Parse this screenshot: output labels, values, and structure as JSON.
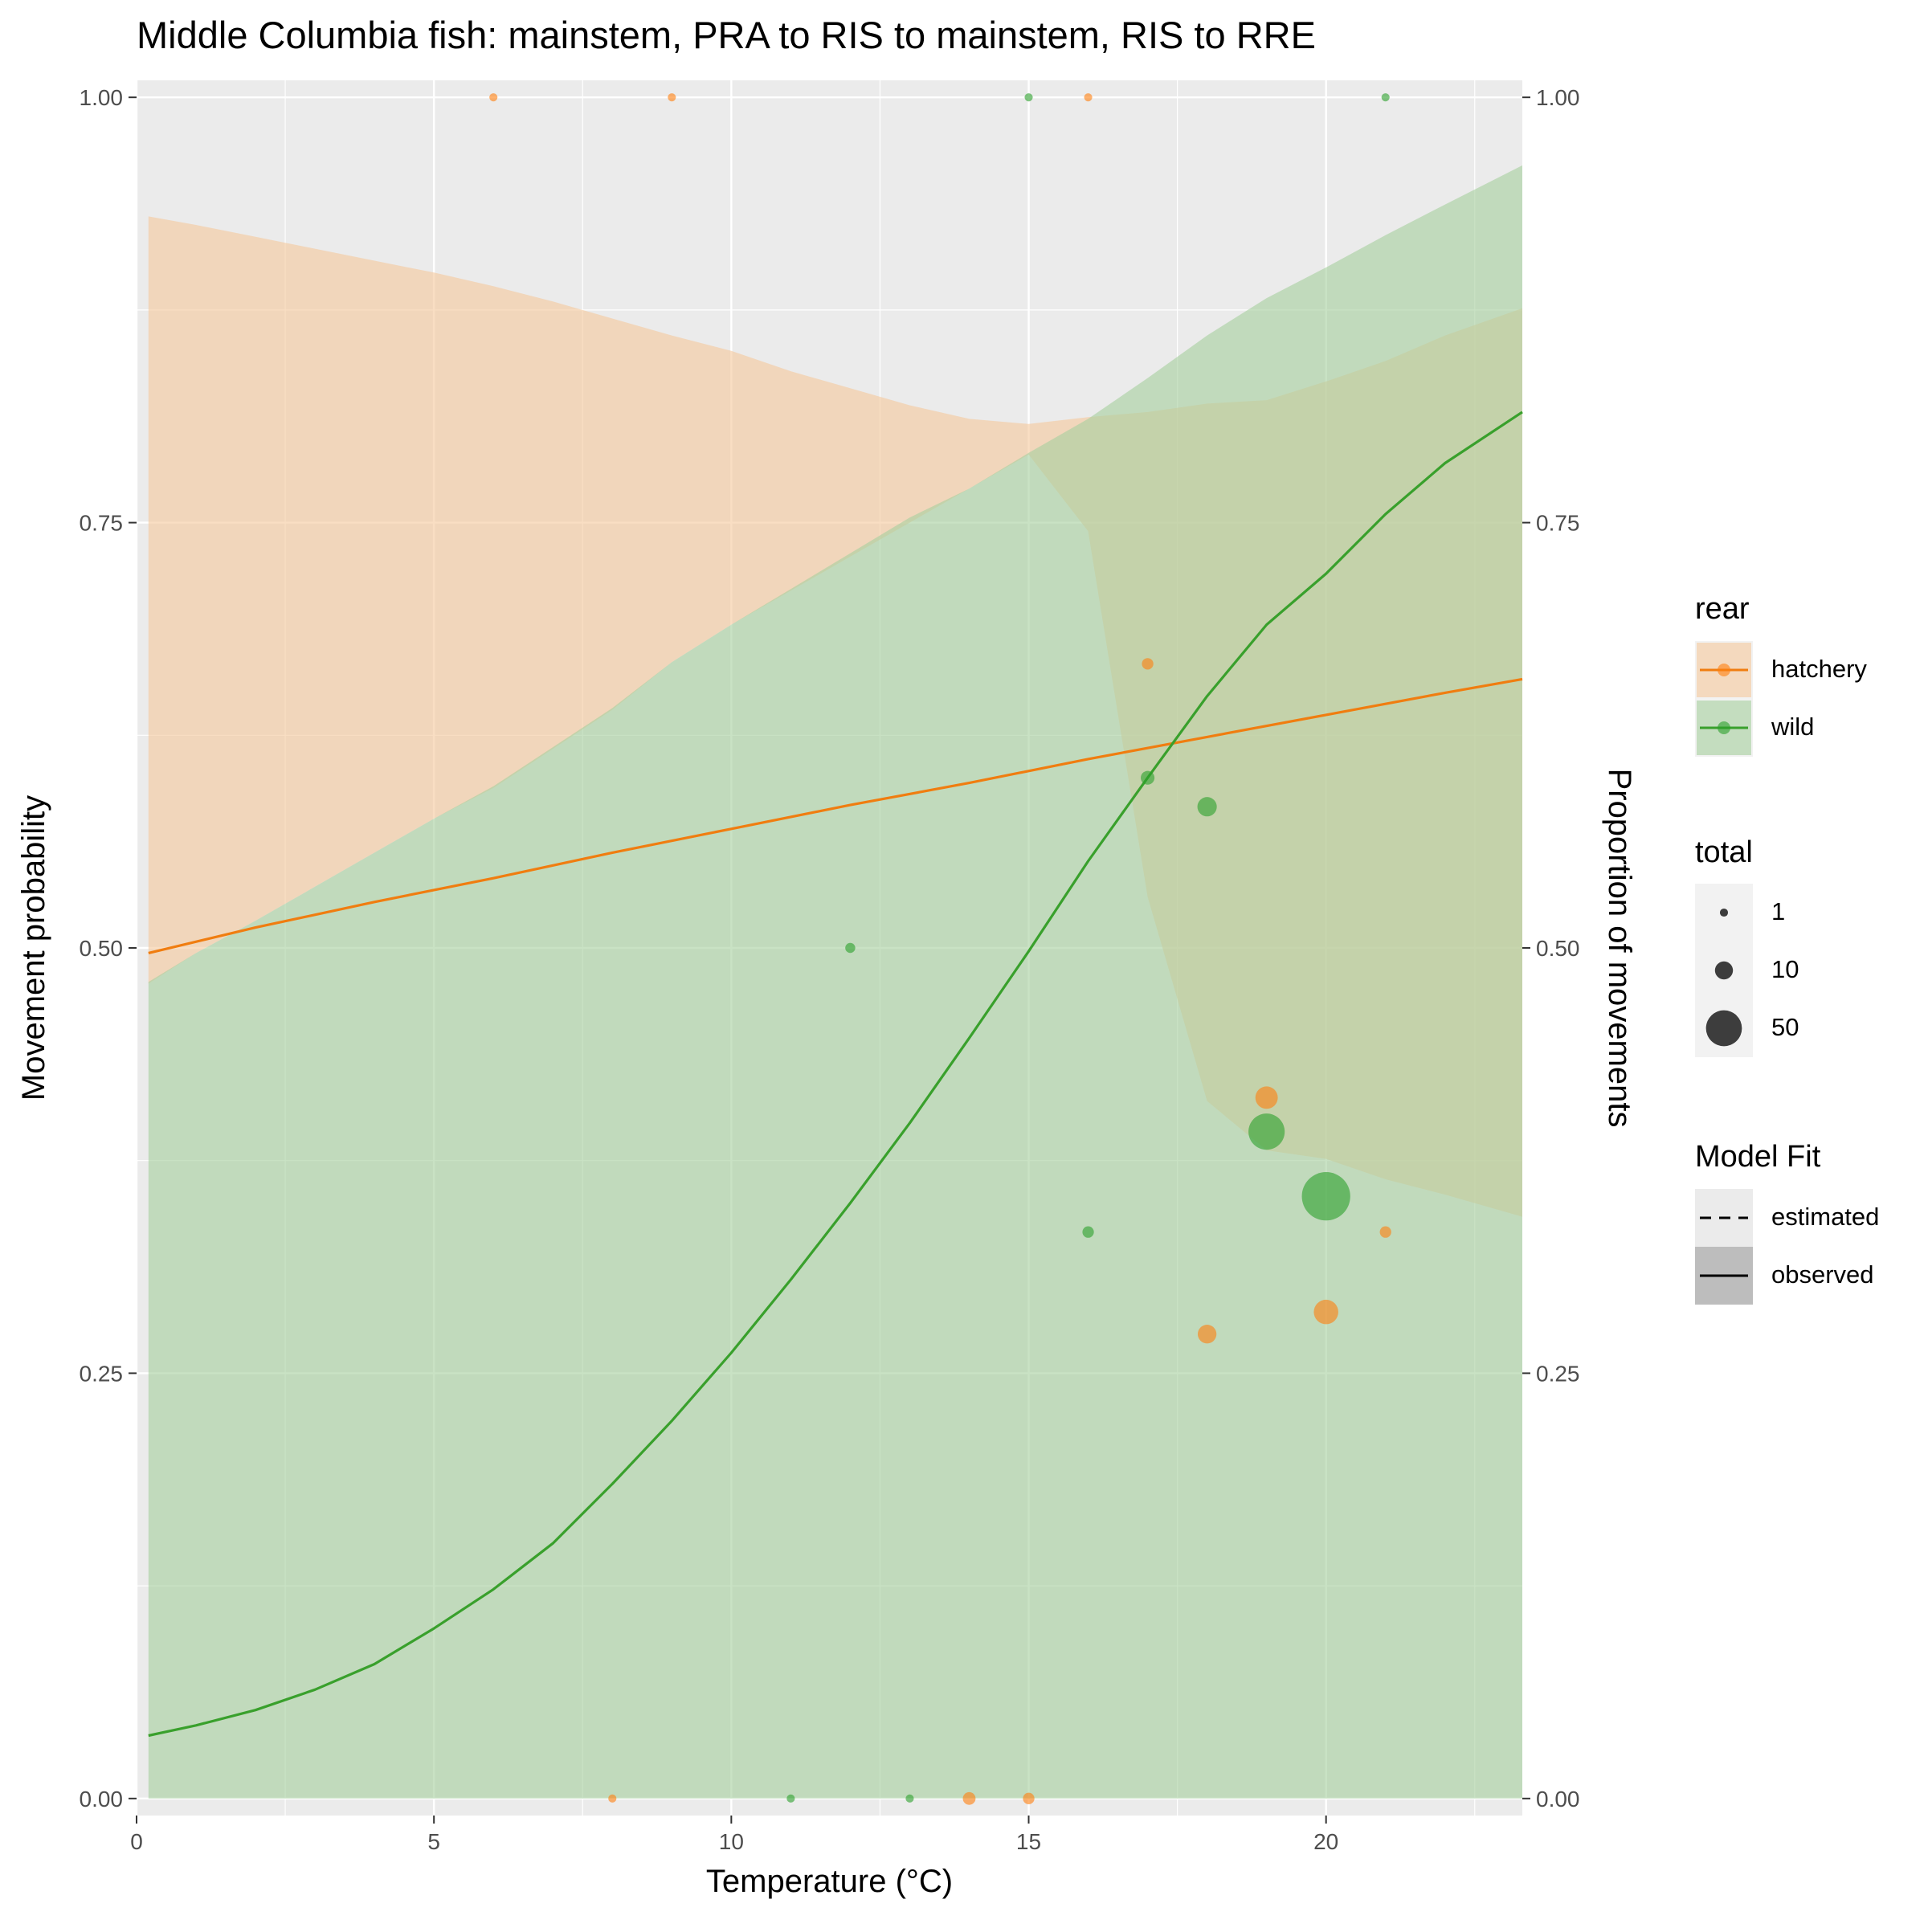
{
  "chart_data": {
    "type": "line",
    "title": "Middle Columbia fish: mainstem, PRA to RIS to mainstem, RIS to RRE",
    "xlabel": "Temperature (°C)",
    "ylabel": "Movement probability",
    "ylabel_right": "Proportion of movements",
    "xlim": [
      0,
      23.3
    ],
    "ylim": [
      -0.01,
      1.01
    ],
    "x_ticks": [
      0,
      5,
      10,
      15,
      20
    ],
    "x_tick_labels": [
      "0",
      "5",
      "10",
      "15",
      "20"
    ],
    "y_ticks": [
      0,
      0.25,
      0.5,
      0.75,
      1.0
    ],
    "y_tick_labels": [
      "0.00",
      "0.25",
      "0.50",
      "0.75",
      "1.00"
    ],
    "grid": true,
    "background": "#EBEBEB",
    "legend_position": "right",
    "series": [
      {
        "name": "hatchery",
        "color": "#FF7F0E",
        "line_color": "#F07D10",
        "ribbon_color": "#F5C99E",
        "fit": {
          "x": [
            0.2,
            2,
            4,
            6,
            8,
            10,
            12,
            14,
            16,
            18,
            20,
            22,
            23.3
          ],
          "y": [
            0.497,
            0.512,
            0.527,
            0.541,
            0.556,
            0.57,
            0.584,
            0.597,
            0.611,
            0.624,
            0.637,
            0.65,
            0.658
          ]
        },
        "ribbon_upper": {
          "x": [
            0.2,
            1,
            2,
            3,
            4,
            5,
            6,
            7,
            8,
            9,
            10,
            11,
            12,
            13,
            14,
            15,
            16,
            17,
            18,
            19,
            20,
            21,
            22,
            23.3
          ],
          "y": [
            0.93,
            0.925,
            0.918,
            0.911,
            0.904,
            0.897,
            0.889,
            0.88,
            0.87,
            0.86,
            0.851,
            0.839,
            0.829,
            0.819,
            0.811,
            0.808,
            0.812,
            0.815,
            0.82,
            0.822,
            0.833,
            0.845,
            0.86,
            0.876
          ]
        },
        "ribbon_lower": {
          "x": [
            0.2,
            1,
            2,
            3,
            4,
            5,
            6,
            7,
            8,
            9,
            10,
            11,
            12,
            13,
            14,
            15,
            16,
            17,
            18,
            19,
            20,
            21,
            22,
            23.3
          ],
          "y": [
            0.479,
            0.497,
            0.516,
            0.536,
            0.556,
            0.576,
            0.594,
            0.617,
            0.64,
            0.668,
            0.69,
            0.71,
            0.73,
            0.75,
            0.77,
            0.79,
            0.745,
            0.53,
            0.41,
            0.381,
            0.376,
            0.364,
            0.355,
            0.342
          ]
        },
        "points": [
          {
            "x": 6,
            "y": 1.0,
            "total": 1
          },
          {
            "x": 9,
            "y": 1.0,
            "total": 1
          },
          {
            "x": 16,
            "y": 1.0,
            "total": 1
          },
          {
            "x": 8,
            "y": 0.0,
            "total": 1
          },
          {
            "x": 14,
            "y": 0.0,
            "total": 4
          },
          {
            "x": 15,
            "y": 0.0,
            "total": 3
          },
          {
            "x": 17,
            "y": 0.667,
            "total": 3
          },
          {
            "x": 18,
            "y": 0.273,
            "total": 11
          },
          {
            "x": 19,
            "y": 0.412,
            "total": 17
          },
          {
            "x": 20,
            "y": 0.286,
            "total": 21
          },
          {
            "x": 21,
            "y": 0.333,
            "total": 3
          }
        ]
      },
      {
        "name": "wild",
        "color": "#2CA02C",
        "line_color": "#39A02C",
        "ribbon_color": "#A8D1A0",
        "fit": {
          "x": [
            0.2,
            1,
            2,
            3,
            4,
            5,
            6,
            7,
            8,
            9,
            10,
            11,
            12,
            13,
            14,
            15,
            16,
            17,
            18,
            19,
            20,
            21,
            22,
            23.3
          ],
          "y": [
            0.037,
            0.043,
            0.052,
            0.064,
            0.079,
            0.1,
            0.123,
            0.15,
            0.185,
            0.222,
            0.262,
            0.305,
            0.35,
            0.397,
            0.447,
            0.498,
            0.551,
            0.6,
            0.648,
            0.69,
            0.72,
            0.755,
            0.785,
            0.815
          ]
        },
        "ribbon_upper": {
          "x": [
            0.2,
            1,
            2,
            3,
            4,
            5,
            6,
            7,
            8,
            9,
            10,
            11,
            12,
            13,
            14,
            15,
            16,
            17,
            18,
            19,
            20,
            21,
            22,
            23.3
          ],
          "y": [
            0.48,
            0.497,
            0.516,
            0.536,
            0.556,
            0.576,
            0.595,
            0.618,
            0.641,
            0.668,
            0.69,
            0.711,
            0.732,
            0.753,
            0.77,
            0.791,
            0.811,
            0.835,
            0.86,
            0.882,
            0.9,
            0.919,
            0.937,
            0.96
          ]
        },
        "ribbon_lower": {
          "x": [
            0.2,
            1,
            2,
            3,
            4,
            5,
            6,
            7,
            8,
            9,
            10,
            11,
            12,
            13,
            14,
            15,
            16,
            17,
            18,
            19,
            20,
            21,
            22,
            23.3
          ],
          "y": [
            0.0,
            0.0,
            0.0,
            0.0,
            0.0,
            0.0,
            0.0,
            0.0,
            0.0,
            0.0,
            0.0,
            0.0,
            0.0,
            0.0,
            0.0,
            0.0,
            0.0,
            0.0,
            0.0,
            0.0,
            0.0,
            0.0,
            0.0,
            0.0
          ]
        },
        "points": [
          {
            "x": 15,
            "y": 1.0,
            "total": 1
          },
          {
            "x": 21,
            "y": 1.0,
            "total": 1
          },
          {
            "x": 11,
            "y": 0.0,
            "total": 1
          },
          {
            "x": 13,
            "y": 0.0,
            "total": 1
          },
          {
            "x": 12,
            "y": 0.5,
            "total": 2
          },
          {
            "x": 16,
            "y": 0.333,
            "total": 3
          },
          {
            "x": 17,
            "y": 0.6,
            "total": 5
          },
          {
            "x": 18,
            "y": 0.583,
            "total": 12
          },
          {
            "x": 19,
            "y": 0.392,
            "total": 51
          },
          {
            "x": 20,
            "y": 0.354,
            "total": 96
          }
        ]
      }
    ],
    "legend": {
      "rear": {
        "title": "rear",
        "items": [
          "hatchery",
          "wild"
        ]
      },
      "total": {
        "title": "total",
        "items": [
          "1",
          "10",
          "50"
        ],
        "values": [
          1,
          10,
          50
        ]
      },
      "model_fit": {
        "title": "Model Fit",
        "items": [
          "estimated",
          "observed"
        ]
      }
    }
  }
}
